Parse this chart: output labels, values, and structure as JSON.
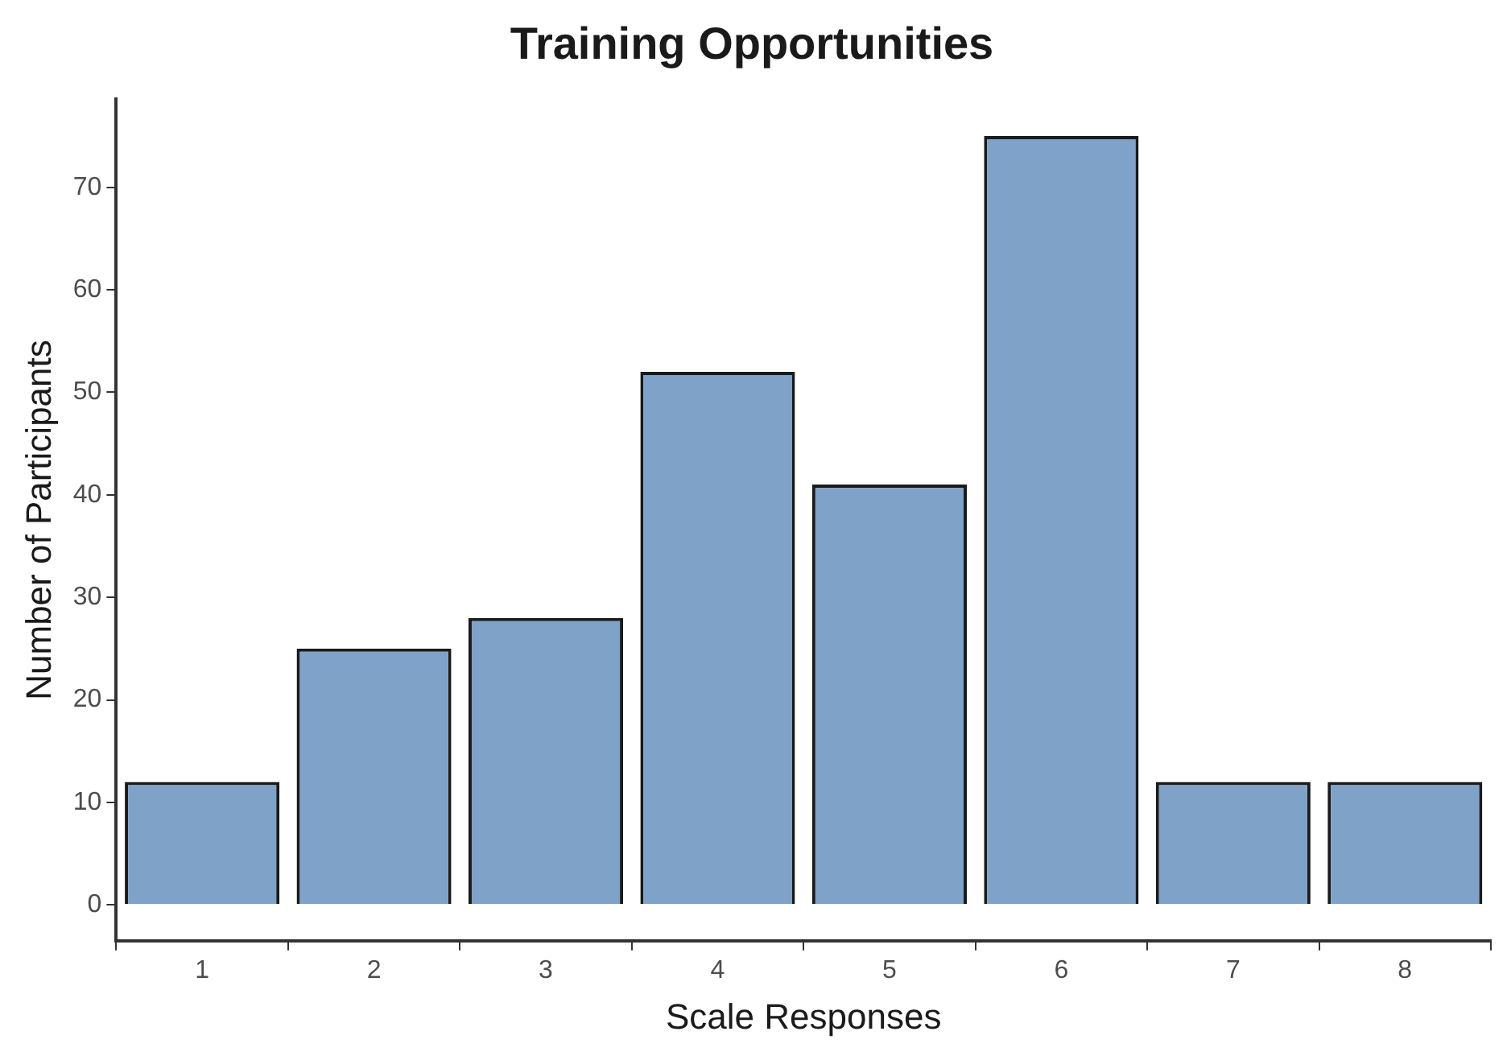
{
  "chart_data": {
    "type": "bar",
    "title": "Training Opportunities",
    "xlabel": "Scale Responses",
    "ylabel": "Number of Participants",
    "categories": [
      "1",
      "2",
      "3",
      "4",
      "5",
      "6",
      "7",
      "8"
    ],
    "values": [
      12,
      25,
      28,
      52,
      41,
      75,
      12,
      12
    ],
    "color": "#7ea2c8",
    "ylim": [
      -3.5,
      78.6
    ],
    "yticks": [
      0,
      10,
      20,
      30,
      40,
      50,
      60,
      70
    ],
    "grid": false,
    "legend": false
  }
}
